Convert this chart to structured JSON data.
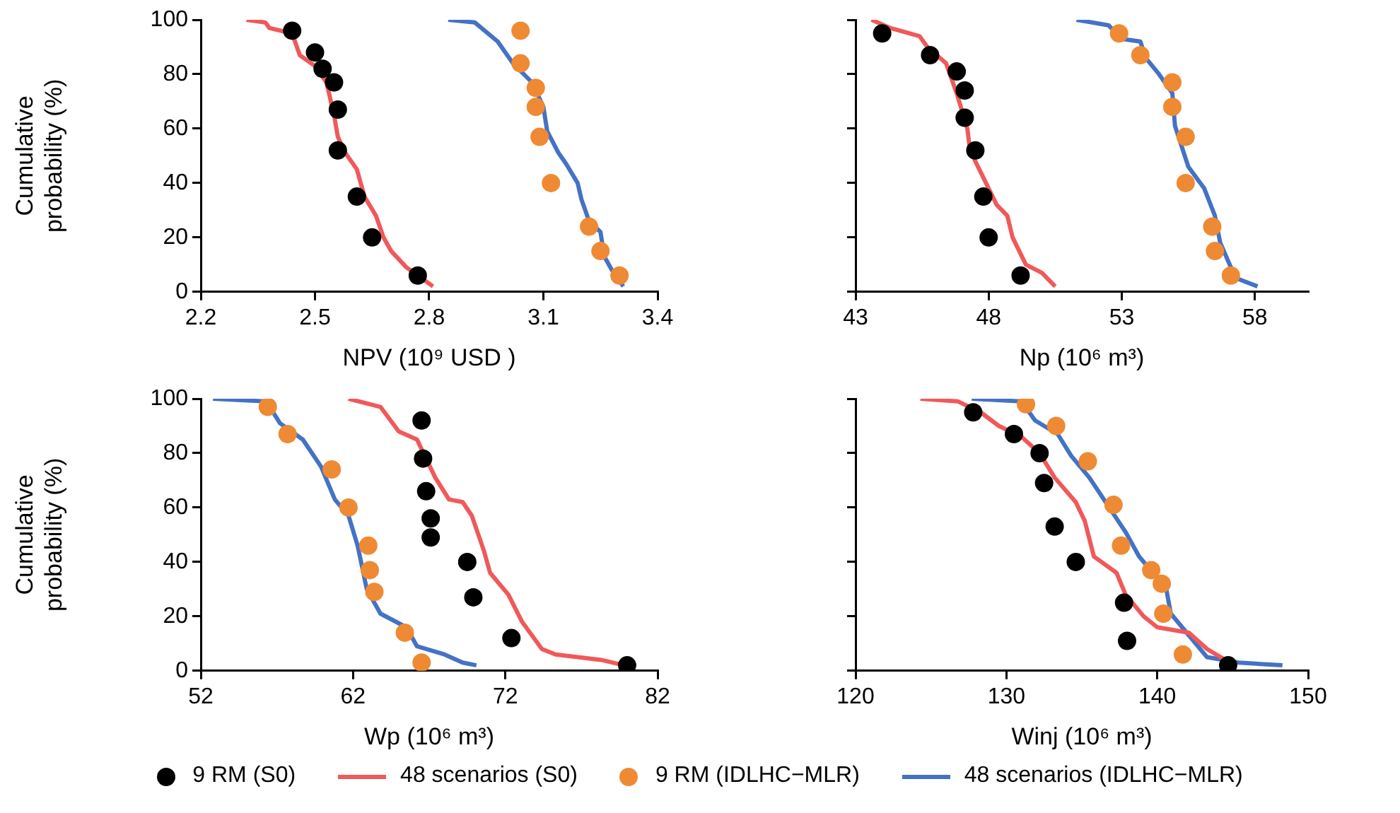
{
  "chart_data": [
    {
      "type": "scatter",
      "xlabel": "NPV (10⁹ USD )",
      "ylabel": "Cumulative probability (%)",
      "xlim": [
        2.2,
        3.4
      ],
      "xticks": [
        2.2,
        2.5,
        2.8,
        3.1,
        3.4
      ],
      "ylim": [
        0,
        100
      ],
      "yticks": [
        0,
        20,
        40,
        60,
        80,
        100
      ],
      "grid": false,
      "legend": "bottom",
      "series": [
        {
          "name": "9 RM (S0)",
          "type": "scatter",
          "color": "#000000",
          "x": [
            2.44,
            2.5,
            2.52,
            2.55,
            2.56,
            2.56,
            2.61,
            2.65,
            2.77
          ],
          "values": [
            96,
            88,
            82,
            77,
            67,
            52,
            35,
            20,
            6
          ]
        },
        {
          "name": "48 scenarios (S0)",
          "type": "line",
          "color": "#f0595a",
          "x": [
            2.32,
            2.37,
            2.38,
            2.44,
            2.46,
            2.5,
            2.53,
            2.55,
            2.56,
            2.58,
            2.61,
            2.63,
            2.66,
            2.68,
            2.7,
            2.74,
            2.78,
            2.81
          ],
          "values": [
            100,
            99,
            97,
            95,
            87,
            83,
            77,
            65,
            57,
            51,
            45,
            35,
            28,
            20,
            15,
            9,
            5,
            2
          ]
        },
        {
          "name": "9 RM (IDLHC−MLR)",
          "type": "scatter",
          "color": "#ef8a34",
          "x": [
            3.04,
            3.04,
            3.08,
            3.08,
            3.09,
            3.12,
            3.22,
            3.25,
            3.3
          ],
          "values": [
            96,
            84,
            75,
            68,
            57,
            40,
            24,
            15,
            6
          ]
        },
        {
          "name": "48 scenarios (IDLHC−MLR)",
          "type": "line",
          "color": "#4472c4",
          "x": [
            2.85,
            2.92,
            2.98,
            3.02,
            3.07,
            3.1,
            3.11,
            3.14,
            3.16,
            3.19,
            3.2,
            3.22,
            3.25,
            3.26,
            3.28,
            3.31
          ],
          "values": [
            100,
            99,
            92,
            84,
            77,
            68,
            59,
            51,
            47,
            40,
            34,
            26,
            22,
            13,
            8,
            2
          ]
        }
      ]
    },
    {
      "type": "scatter",
      "xlabel": "Np (10⁶ m³)",
      "xlim": [
        43,
        60
      ],
      "xticks": [
        43,
        48,
        53,
        58
      ],
      "ylim": [
        0,
        100
      ],
      "yticks": [
        {
          "value": 0,
          "label": null
        },
        {
          "value": 20,
          "label": null
        },
        {
          "value": 40,
          "label": null
        },
        {
          "value": 60,
          "label": null
        },
        {
          "value": 80,
          "label": null
        },
        {
          "value": 100,
          "label": null
        }
      ],
      "tick_labels": "x",
      "grid": false,
      "series": [
        {
          "type": "scatter",
          "color": "#000000",
          "x": [
            44.0,
            45.8,
            46.8,
            47.1,
            47.1,
            47.5,
            47.8,
            48.0,
            49.2
          ],
          "values": [
            95,
            87,
            81,
            74,
            64,
            52,
            35,
            20,
            6
          ]
        },
        {
          "type": "line",
          "color": "#f0595a",
          "x": [
            43.6,
            44.3,
            45.4,
            45.7,
            46.4,
            46.8,
            47.2,
            47.3,
            47.8,
            48.3,
            48.7,
            48.9,
            49.4,
            50.0,
            50.5
          ],
          "values": [
            100,
            97,
            94,
            90,
            84,
            73,
            60,
            52,
            42,
            32,
            28,
            20,
            10,
            7,
            2
          ]
        },
        {
          "type": "scatter",
          "color": "#ef8a34",
          "x": [
            52.9,
            53.7,
            54.9,
            54.9,
            55.4,
            55.4,
            56.4,
            56.5,
            57.1
          ],
          "values": [
            95,
            87,
            77,
            68,
            57,
            40,
            24,
            15,
            6
          ]
        },
        {
          "type": "line",
          "color": "#4472c4",
          "x": [
            51.3,
            52.5,
            53.0,
            53.7,
            53.9,
            54.4,
            54.9,
            55.0,
            55.5,
            56.1,
            56.5,
            56.7,
            57.1,
            57.3,
            58.1
          ],
          "values": [
            100,
            98,
            93,
            92,
            86,
            80,
            73,
            61,
            46,
            38,
            28,
            18,
            9,
            5,
            2
          ]
        }
      ]
    },
    {
      "type": "scatter",
      "xlabel": "Wp (10⁶ m³)",
      "ylabel": "Cumulative probability (%)",
      "xlim": [
        52,
        82
      ],
      "xticks": [
        52,
        62,
        72,
        82
      ],
      "ylim": [
        0,
        100
      ],
      "yticks": [
        0,
        20,
        40,
        60,
        80,
        100
      ],
      "grid": false,
      "series": [
        {
          "type": "scatter",
          "color": "#000000",
          "x": [
            66.5,
            66.6,
            66.8,
            67.1,
            67.1,
            69.5,
            69.9,
            72.4,
            80.0
          ],
          "values": [
            92,
            78,
            66,
            56,
            49,
            40,
            27,
            12,
            2
          ]
        },
        {
          "type": "line",
          "color": "#f0595a",
          "x": [
            61.7,
            63.8,
            65.0,
            66.2,
            67.4,
            68.3,
            69.2,
            69.8,
            70.6,
            71.0,
            72.2,
            73.1,
            74.4,
            75.3,
            78.3,
            79.8
          ],
          "values": [
            100,
            97,
            88,
            85,
            71,
            63,
            62,
            57,
            44,
            36,
            28,
            18,
            8,
            6,
            4,
            2
          ]
        },
        {
          "type": "scatter",
          "color": "#ef8a34",
          "x": [
            56.4,
            57.7,
            60.6,
            61.7,
            63.0,
            63.1,
            63.4,
            65.4,
            66.5
          ],
          "values": [
            97,
            87,
            74,
            60,
            46,
            37,
            29,
            14,
            3
          ]
        },
        {
          "type": "line",
          "color": "#4472c4",
          "x": [
            52.8,
            56.3,
            57.2,
            58.7,
            59.9,
            60.8,
            61.7,
            62.3,
            62.9,
            63.8,
            65.5,
            66.2,
            68.0,
            69.2,
            70.1
          ],
          "values": [
            100,
            99,
            91,
            85,
            75,
            63,
            57,
            46,
            30,
            21,
            16,
            9,
            6,
            3,
            2
          ]
        }
      ]
    },
    {
      "type": "scatter",
      "xlabel": "Winj (10⁶ m³)",
      "xlim": [
        120,
        150
      ],
      "xticks": [
        120,
        130,
        140,
        150
      ],
      "ylim": [
        0,
        100
      ],
      "yticks": [
        {
          "value": 0,
          "label": null
        },
        {
          "value": 20,
          "label": null
        },
        {
          "value": 40,
          "label": null
        },
        {
          "value": 60,
          "label": null
        },
        {
          "value": 80,
          "label": null
        },
        {
          "value": 100,
          "label": null
        }
      ],
      "tick_labels": "x",
      "grid": false,
      "series": [
        {
          "type": "scatter",
          "color": "#000000",
          "x": [
            127.8,
            130.5,
            132.2,
            132.5,
            133.2,
            134.6,
            137.8,
            138.0,
            144.7
          ],
          "values": [
            95,
            87,
            80,
            69,
            53,
            40,
            25,
            11,
            2
          ]
        },
        {
          "type": "line",
          "color": "#f0595a",
          "x": [
            124.3,
            126.8,
            128.3,
            129.5,
            131.0,
            132.2,
            133.2,
            134.6,
            135.2,
            135.8,
            137.3,
            137.9,
            139.1,
            140.0,
            142.1,
            143.3,
            144.5
          ],
          "values": [
            100,
            99,
            95,
            90,
            86,
            80,
            71,
            62,
            55,
            42,
            36,
            28,
            20,
            16,
            14,
            8,
            4
          ]
        },
        {
          "type": "scatter",
          "color": "#ef8a34",
          "x": [
            131.3,
            133.3,
            135.4,
            137.1,
            137.6,
            139.6,
            140.3,
            140.4,
            141.7
          ],
          "values": [
            98,
            90,
            77,
            61,
            46,
            37,
            32,
            21,
            6
          ]
        },
        {
          "type": "line",
          "color": "#4472c4",
          "x": [
            127.7,
            131.0,
            131.9,
            133.4,
            134.3,
            135.5,
            136.7,
            137.9,
            138.8,
            139.7,
            140.6,
            140.9,
            142.1,
            143.3,
            145.4,
            148.3
          ],
          "values": [
            100,
            99,
            92,
            87,
            79,
            71,
            61,
            51,
            42,
            36,
            30,
            21,
            13,
            5,
            3,
            2
          ]
        }
      ]
    }
  ]
}
